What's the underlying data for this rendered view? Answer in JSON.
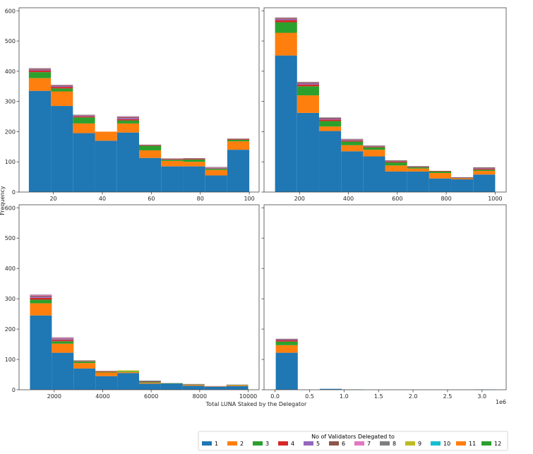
{
  "figure": {
    "xlabel": "Total LUNA Staked by the Delegator",
    "ylabel": "Frequency"
  },
  "legend": {
    "title": "No of Validators Delegated to",
    "placement": "bottom-right",
    "entries": [
      {
        "label": "1",
        "color": "#1f77b4"
      },
      {
        "label": "2",
        "color": "#ff7f0e"
      },
      {
        "label": "3",
        "color": "#2ca02c"
      },
      {
        "label": "4",
        "color": "#d62728"
      },
      {
        "label": "5",
        "color": "#9467bd"
      },
      {
        "label": "6",
        "color": "#8c564b"
      },
      {
        "label": "7",
        "color": "#e377c2"
      },
      {
        "label": "8",
        "color": "#7f7f7f"
      },
      {
        "label": "9",
        "color": "#bcbd22"
      },
      {
        "label": "10",
        "color": "#17becf"
      },
      {
        "label": "11",
        "color": "#ff7f0e"
      },
      {
        "label": "12",
        "color": "#2ca02c"
      }
    ]
  },
  "chart_data": [
    {
      "type": "bar",
      "stacked": true,
      "panel": "top-left",
      "xlim": [
        6,
        104
      ],
      "ylim": [
        0,
        610
      ],
      "xticks": [
        20,
        40,
        60,
        80,
        100
      ],
      "xtick_labels": [
        "20",
        "40",
        "60",
        "80",
        "100"
      ],
      "yticks": [
        0,
        100,
        200,
        300,
        400,
        500,
        600
      ],
      "ytick_labels": [
        "0",
        "100",
        "200",
        "300",
        "400",
        "500",
        "600"
      ],
      "bin_edges": [
        10,
        19,
        28,
        37,
        46,
        55,
        64,
        73,
        82,
        91,
        100
      ],
      "series": [
        {
          "name": "1",
          "color": "#1f77b4",
          "values": [
            335,
            285,
            195,
            170,
            197,
            113,
            85,
            85,
            55,
            140
          ]
        },
        {
          "name": "2",
          "color": "#ff7f0e",
          "values": [
            42,
            48,
            32,
            30,
            30,
            25,
            18,
            15,
            18,
            28
          ]
        },
        {
          "name": "3",
          "color": "#2ca02c",
          "values": [
            20,
            10,
            20,
            0,
            10,
            15,
            4,
            8,
            4,
            5
          ]
        },
        {
          "name": "4",
          "color": "#d62728",
          "values": [
            5,
            5,
            3,
            0,
            4,
            2,
            2,
            2,
            1,
            2
          ]
        },
        {
          "name": "5",
          "color": "#9467bd",
          "values": [
            3,
            3,
            2,
            0,
            4,
            1,
            1,
            1,
            2,
            1
          ]
        },
        {
          "name": "6",
          "color": "#8c564b",
          "values": [
            3,
            2,
            2,
            0,
            3,
            1,
            1,
            1,
            1,
            1
          ]
        },
        {
          "name": "7",
          "color": "#e377c2",
          "values": [
            1,
            1,
            1,
            0,
            2,
            0,
            0,
            0,
            1,
            0
          ]
        },
        {
          "name": "8",
          "color": "#7f7f7f",
          "values": [
            1,
            1,
            1,
            0,
            1,
            0,
            0,
            0,
            1,
            0
          ]
        }
      ]
    },
    {
      "type": "bar",
      "stacked": true,
      "panel": "top-right",
      "xlim": [
        55,
        1045
      ],
      "ylim": [
        0,
        610
      ],
      "xticks": [
        200,
        400,
        600,
        800,
        1000
      ],
      "xtick_labels": [
        "200",
        "400",
        "600",
        "800",
        "1000"
      ],
      "yticks": [
        0,
        100,
        200,
        300,
        400,
        500,
        600
      ],
      "ytick_labels": [
        "",
        "",
        "",
        "",
        "",
        "",
        ""
      ],
      "bin_edges": [
        100,
        190,
        280,
        370,
        460,
        550,
        640,
        730,
        820,
        910,
        1000
      ],
      "series": [
        {
          "name": "1",
          "color": "#1f77b4",
          "values": [
            452,
            262,
            202,
            135,
            118,
            68,
            68,
            45,
            42,
            58
          ]
        },
        {
          "name": "2",
          "color": "#ff7f0e",
          "values": [
            75,
            58,
            15,
            20,
            22,
            20,
            10,
            18,
            3,
            12
          ]
        },
        {
          "name": "3",
          "color": "#2ca02c",
          "values": [
            35,
            30,
            18,
            12,
            8,
            10,
            4,
            5,
            1,
            4
          ]
        },
        {
          "name": "4",
          "color": "#d62728",
          "values": [
            7,
            6,
            5,
            3,
            2,
            3,
            1,
            1,
            1,
            3
          ]
        },
        {
          "name": "5",
          "color": "#9467bd",
          "values": [
            4,
            4,
            3,
            2,
            1,
            1,
            1,
            0,
            1,
            2
          ]
        },
        {
          "name": "6",
          "color": "#8c564b",
          "values": [
            3,
            3,
            3,
            2,
            2,
            2,
            1,
            1,
            1,
            2
          ]
        },
        {
          "name": "7",
          "color": "#e377c2",
          "values": [
            1,
            1,
            0,
            1,
            0,
            0,
            0,
            0,
            0,
            0
          ]
        },
        {
          "name": "8",
          "color": "#7f7f7f",
          "values": [
            1,
            1,
            1,
            1,
            1,
            1,
            1,
            0,
            0,
            1
          ]
        }
      ]
    },
    {
      "type": "bar",
      "stacked": true,
      "panel": "bottom-left",
      "xlim": [
        550,
        10450
      ],
      "ylim": [
        0,
        610
      ],
      "xticks": [
        2000,
        4000,
        6000,
        8000,
        10000
      ],
      "xtick_labels": [
        "2000",
        "4000",
        "6000",
        "8000",
        "10000"
      ],
      "yticks": [
        0,
        100,
        200,
        300,
        400,
        500,
        600
      ],
      "ytick_labels": [
        "0",
        "100",
        "200",
        "300",
        "400",
        "500",
        "600"
      ],
      "bin_edges": [
        1000,
        1900,
        2800,
        3700,
        4600,
        5500,
        6400,
        7300,
        8200,
        9100,
        10000
      ],
      "series": [
        {
          "name": "1",
          "color": "#1f77b4",
          "values": [
            245,
            122,
            70,
            45,
            55,
            20,
            20,
            13,
            10,
            12
          ]
        },
        {
          "name": "2",
          "color": "#ff7f0e",
          "values": [
            40,
            30,
            18,
            12,
            3,
            3,
            0,
            3,
            1,
            3
          ]
        },
        {
          "name": "3",
          "color": "#2ca02c",
          "values": [
            12,
            8,
            5,
            2,
            2,
            2,
            1,
            1,
            0,
            1
          ]
        },
        {
          "name": "4",
          "color": "#d62728",
          "values": [
            6,
            4,
            1,
            2,
            0,
            0,
            0,
            0,
            0,
            0
          ]
        },
        {
          "name": "5",
          "color": "#9467bd",
          "values": [
            4,
            3,
            0,
            0,
            0,
            0,
            0,
            0,
            0,
            0
          ]
        },
        {
          "name": "6",
          "color": "#8c564b",
          "values": [
            3,
            2,
            1,
            1,
            0,
            3,
            0,
            1,
            1,
            0
          ]
        },
        {
          "name": "7",
          "color": "#e377c2",
          "values": [
            3,
            3,
            0,
            0,
            0,
            0,
            0,
            0,
            0,
            0
          ]
        },
        {
          "name": "8",
          "color": "#7f7f7f",
          "values": [
            1,
            1,
            2,
            0,
            0,
            2,
            1,
            1,
            0,
            1
          ]
        },
        {
          "name": "9",
          "color": "#bcbd22",
          "values": [
            0,
            0,
            0,
            0,
            4,
            0,
            0,
            0,
            0,
            0
          ]
        }
      ]
    },
    {
      "type": "bar",
      "stacked": true,
      "panel": "bottom-right",
      "xlim": [
        -0.16,
        3.35
      ],
      "ylim": [
        0,
        610
      ],
      "xticks": [
        0,
        0.5,
        1.0,
        1.5,
        2.0,
        2.5,
        3.0
      ],
      "xtick_labels": [
        "0.0",
        "0.5",
        "1.0",
        "1.5",
        "2.0",
        "2.5",
        "3.0"
      ],
      "x_offset_label": "1e6",
      "yticks": [
        0,
        100,
        200,
        300,
        400,
        500,
        600
      ],
      "ytick_labels": [
        "",
        "",
        "",
        "",
        "",
        "",
        ""
      ],
      "bin_edges": [
        0.01,
        0.329,
        0.648,
        0.967,
        1.286,
        1.605,
        1.924,
        2.243,
        2.562,
        2.881,
        3.2
      ],
      "series": [
        {
          "name": "1",
          "color": "#1f77b4",
          "values": [
            122,
            0,
            3,
            1,
            0,
            0,
            0,
            0,
            0,
            1
          ]
        },
        {
          "name": "2",
          "color": "#ff7f0e",
          "values": [
            25,
            0,
            0,
            0,
            0,
            0,
            0,
            0,
            0,
            0
          ]
        },
        {
          "name": "3",
          "color": "#2ca02c",
          "values": [
            12,
            0,
            0,
            0,
            0,
            0,
            0,
            0,
            0,
            0
          ]
        },
        {
          "name": "4",
          "color": "#d62728",
          "values": [
            4,
            0,
            0,
            0,
            0,
            0,
            0,
            0,
            0,
            0
          ]
        },
        {
          "name": "5",
          "color": "#9467bd",
          "values": [
            3,
            0,
            0,
            0,
            0,
            0,
            0,
            0,
            0,
            0
          ]
        },
        {
          "name": "6",
          "color": "#8c564b",
          "values": [
            2,
            0,
            0,
            0,
            0,
            0,
            0,
            0,
            0,
            0
          ]
        }
      ]
    }
  ]
}
